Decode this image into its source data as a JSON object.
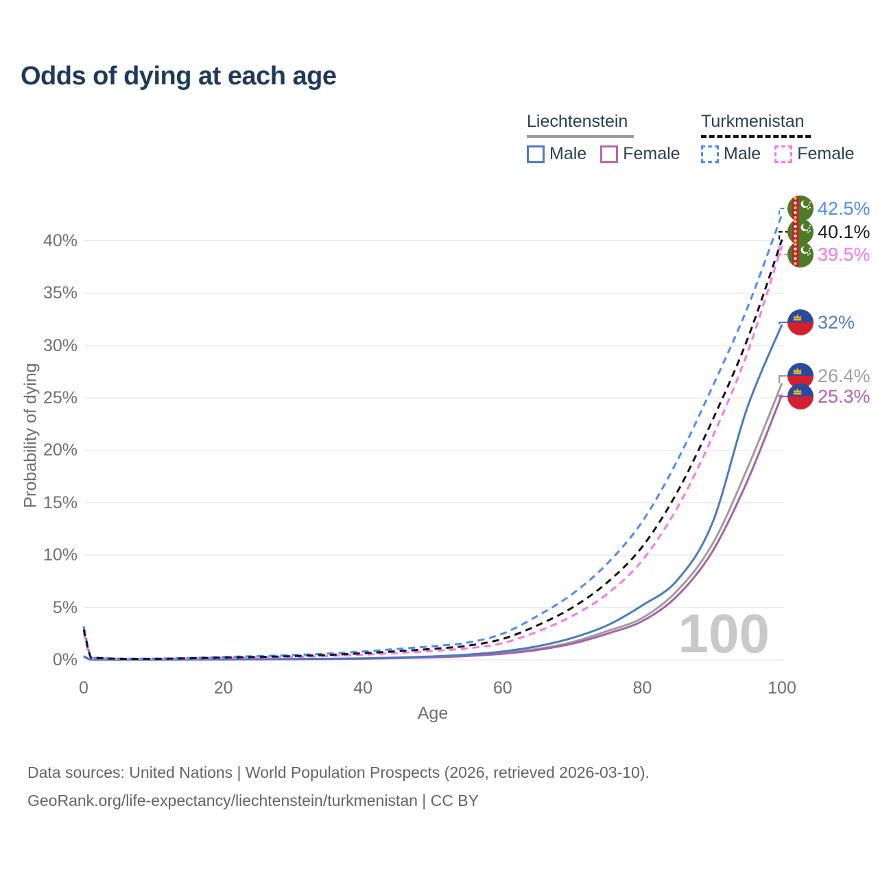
{
  "title": "Odds of dying at each age",
  "legend": {
    "groups": [
      {
        "label": "Liechtenstein",
        "line_style": "solid",
        "underline_color": "#9c9c9c",
        "items": [
          {
            "label": "Male",
            "color": "#4a7bbd"
          },
          {
            "label": "Female",
            "color": "#b466ae"
          }
        ]
      },
      {
        "label": "Turkmenistan",
        "line_style": "dashed",
        "underline_color": "#141414",
        "items": [
          {
            "label": "Male",
            "color": "#4b8cf7"
          },
          {
            "label": "Female",
            "color": "#fb76ea"
          }
        ]
      }
    ]
  },
  "axes": {
    "y_label": "Probability of dying",
    "y_ticks": [
      "0%",
      "5%",
      "10%",
      "15%",
      "20%",
      "25%",
      "30%",
      "35%",
      "40%"
    ],
    "x_label": "Age",
    "x_ticks": [
      "0",
      "20",
      "40",
      "60",
      "80",
      "100"
    ]
  },
  "watermark": "100",
  "annotations": [
    {
      "series_id": "tm-male",
      "value": "42.5%",
      "color": "#4b8cf7",
      "flag": "turkmenistan"
    },
    {
      "series_id": "tm-overall",
      "value": "40.1%",
      "color": "#1a1a1a",
      "flag": "turkmenistan"
    },
    {
      "series_id": "tm-female",
      "value": "39.5%",
      "color": "#fb76ea",
      "flag": "turkmenistan"
    },
    {
      "series_id": "li-male",
      "value": "32%",
      "color": "#4e80c8",
      "flag": "liechtenstein"
    },
    {
      "series_id": "li-overall",
      "value": "26.4%",
      "color": "#9e9e9e",
      "flag": "liechtenstein"
    },
    {
      "series_id": "li-female",
      "value": "25.3%",
      "color": "#b263ae",
      "flag": "liechtenstein"
    }
  ],
  "footer": {
    "line1": "Data sources: United Nations | World Population Prospects (2026, retrieved 2026-03-10).",
    "line2": "GeoRank.org/life-expectancy/liechtenstein/turkmenistan | CC BY"
  },
  "chart_data": {
    "type": "line",
    "title": "Odds of dying at each age",
    "xlabel": "Age",
    "ylabel": "Probability of dying",
    "xlim": [
      0,
      100
    ],
    "ylim": [
      0,
      44
    ],
    "grid": true,
    "legend_position": "top-right",
    "x": [
      0,
      1,
      2,
      5,
      10,
      15,
      20,
      25,
      30,
      35,
      40,
      45,
      50,
      55,
      60,
      65,
      70,
      75,
      80,
      85,
      90,
      95,
      100
    ],
    "series": [
      {
        "id": "li-overall",
        "name": "Liechtenstein Overall",
        "country": "Liechtenstein",
        "sex": "Both",
        "color": "#9d9d9d",
        "dash": false,
        "end_label": "26.4%",
        "values": [
          0.32,
          0.035,
          0.025,
          0.02,
          0.02,
          0.03,
          0.05,
          0.06,
          0.07,
          0.09,
          0.12,
          0.18,
          0.27,
          0.42,
          0.66,
          1.05,
          1.7,
          2.75,
          4.0,
          6.6,
          11.0,
          18.2,
          26.4
        ]
      },
      {
        "id": "li-female",
        "name": "Liechtenstein Female",
        "country": "Liechtenstein",
        "sex": "Female",
        "color": "#a661a6",
        "dash": false,
        "end_label": "25.3%",
        "values": [
          0.3,
          0.03,
          0.02,
          0.015,
          0.015,
          0.025,
          0.04,
          0.05,
          0.06,
          0.08,
          0.11,
          0.16,
          0.24,
          0.37,
          0.58,
          0.95,
          1.55,
          2.5,
          3.7,
          6.1,
          10.3,
          17.0,
          25.3
        ]
      },
      {
        "id": "li-male",
        "name": "Liechtenstein Male",
        "country": "Liechtenstein",
        "sex": "Male",
        "color": "#4a7bbd",
        "dash": false,
        "end_label": "32%",
        "values": [
          0.35,
          0.04,
          0.03,
          0.02,
          0.02,
          0.04,
          0.06,
          0.08,
          0.09,
          0.11,
          0.15,
          0.22,
          0.33,
          0.5,
          0.8,
          1.3,
          2.1,
          3.3,
          5.2,
          7.6,
          13.0,
          24.0,
          32.0
        ]
      },
      {
        "id": "tm-female",
        "name": "Turkmenistan Female",
        "country": "Turkmenistan",
        "sex": "Female",
        "color": "#fb76ea",
        "dash": true,
        "end_label": "39.5%",
        "values": [
          2.6,
          0.24,
          0.16,
          0.1,
          0.09,
          0.12,
          0.17,
          0.22,
          0.28,
          0.37,
          0.5,
          0.66,
          0.85,
          1.1,
          1.6,
          2.7,
          4.2,
          6.3,
          9.5,
          14.5,
          21.2,
          29.2,
          39.5
        ]
      },
      {
        "id": "tm-male",
        "name": "Turkmenistan Male",
        "country": "Turkmenistan",
        "sex": "Male",
        "color": "#4b8cf7",
        "dash": true,
        "end_label": "42.5%",
        "values": [
          3.2,
          0.3,
          0.2,
          0.12,
          0.12,
          0.18,
          0.28,
          0.36,
          0.46,
          0.6,
          0.8,
          1.05,
          1.3,
          1.65,
          2.5,
          4.2,
          6.3,
          9.2,
          13.2,
          19.0,
          26.0,
          33.5,
          42.5
        ]
      },
      {
        "id": "tm-overall",
        "name": "Turkmenistan Overall",
        "country": "Turkmenistan",
        "sex": "Both",
        "color": "#141414",
        "dash": true,
        "end_label": "40.1%",
        "values": [
          2.9,
          0.27,
          0.18,
          0.11,
          0.1,
          0.15,
          0.22,
          0.28,
          0.36,
          0.47,
          0.63,
          0.83,
          1.05,
          1.35,
          2.0,
          3.3,
          5.0,
          7.4,
          10.8,
          16.0,
          22.8,
          30.5,
          40.1
        ]
      }
    ]
  }
}
